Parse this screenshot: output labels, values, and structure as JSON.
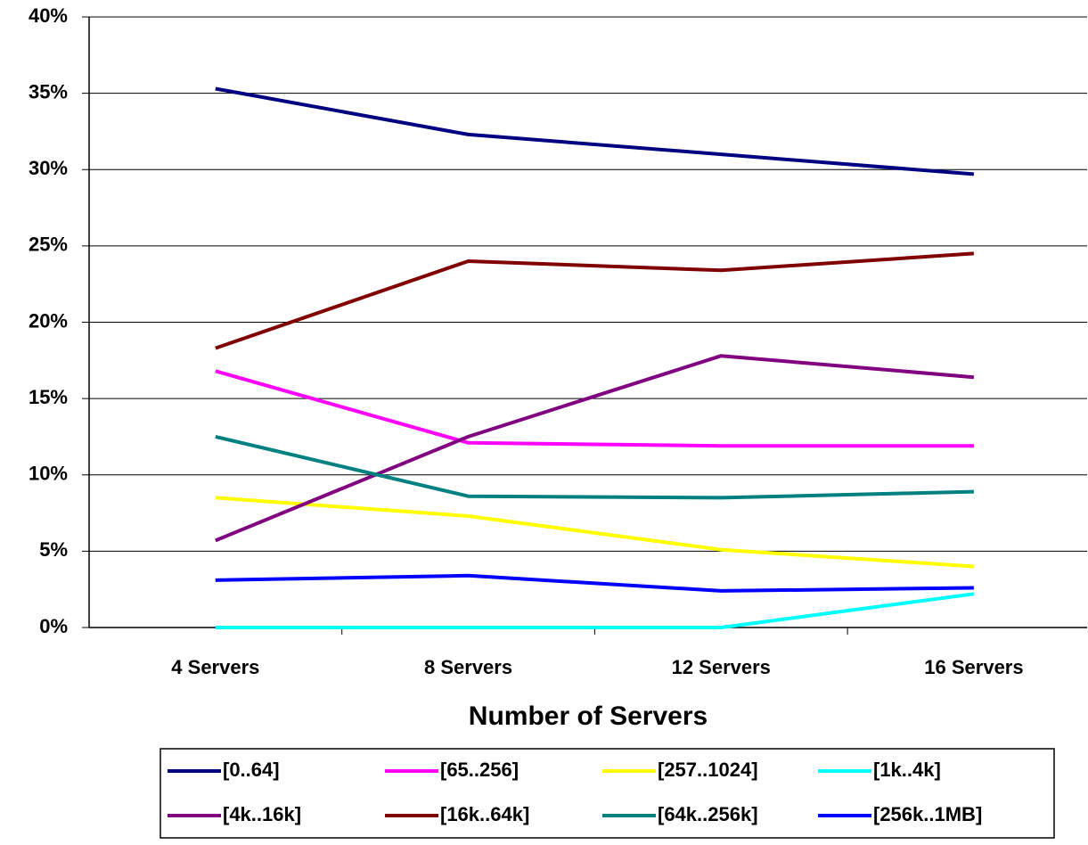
{
  "chart_data": {
    "type": "line",
    "x_label": "Number of Servers",
    "categories": [
      "4 Servers",
      "8 Servers",
      "12 Servers",
      "16 Servers"
    ],
    "series": [
      {
        "name": "[0..64]",
        "color": "#000080",
        "values": [
          35.3,
          32.3,
          31.0,
          29.7
        ]
      },
      {
        "name": "[65..256]",
        "color": "#ff00ff",
        "values": [
          16.8,
          12.1,
          11.9,
          11.9
        ]
      },
      {
        "name": "[257..1024]",
        "color": "#ffff00",
        "values": [
          8.5,
          7.3,
          5.1,
          4.0
        ]
      },
      {
        "name": "[1k..4k]",
        "color": "#00ffff",
        "values": [
          0,
          0,
          0,
          2.2
        ]
      },
      {
        "name": "[4k..16k]",
        "color": "#800080",
        "values": [
          5.7,
          12.5,
          17.8,
          16.4
        ]
      },
      {
        "name": "[16k..64k]",
        "color": "#800000",
        "values": [
          18.3,
          24.0,
          23.4,
          24.5
        ]
      },
      {
        "name": "[64k..256k]",
        "color": "#008080",
        "values": [
          12.5,
          8.6,
          8.5,
          8.9
        ]
      },
      {
        "name": "[256k..1MB]",
        "color": "#0000ff",
        "values": [
          3.1,
          3.4,
          2.4,
          2.6
        ]
      }
    ],
    "ylim": [
      0,
      40
    ],
    "yticks": [
      {
        "value": 0,
        "label": "0%"
      },
      {
        "value": 5,
        "label": "5%"
      },
      {
        "value": 10,
        "label": "10%"
      },
      {
        "value": 15,
        "label": "15%"
      },
      {
        "value": 20,
        "label": "20%"
      },
      {
        "value": 25,
        "label": "25%"
      },
      {
        "value": 30,
        "label": "30%"
      },
      {
        "value": 35,
        "label": "35%"
      },
      {
        "value": 40,
        "label": "40%"
      }
    ],
    "grid": true,
    "legend": "bottom"
  }
}
